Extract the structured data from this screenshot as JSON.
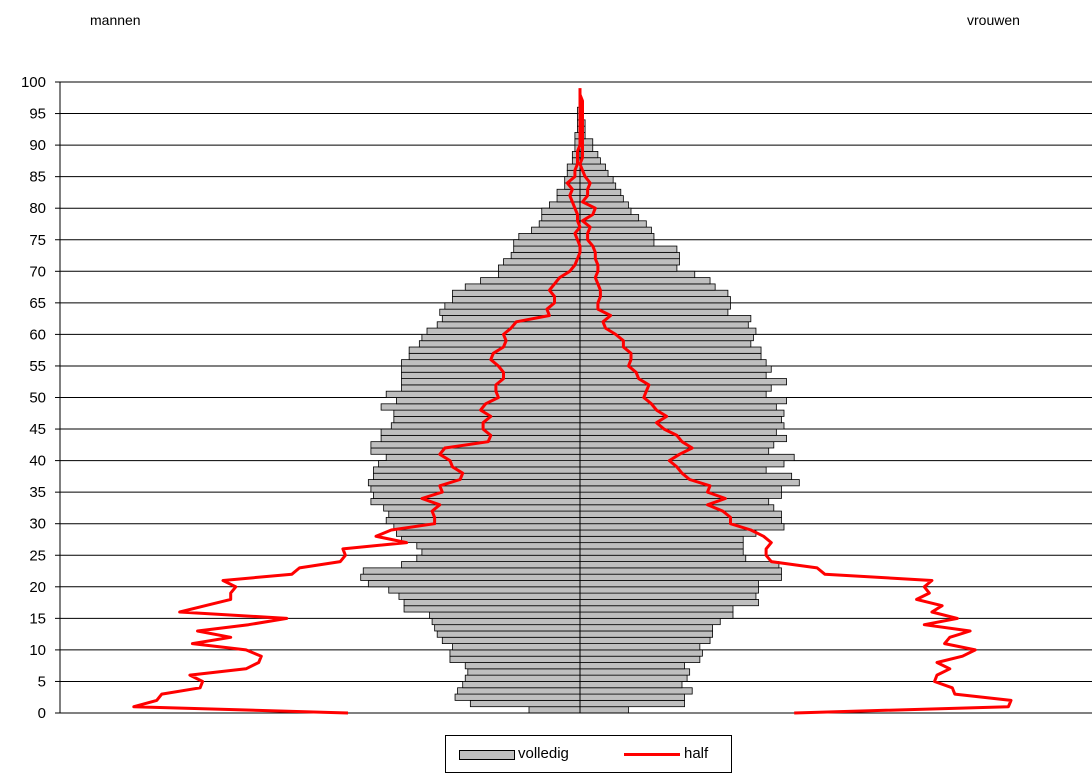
{
  "chart_data": {
    "type": "bar",
    "subtype": "population-pyramid",
    "left_label": "mannen",
    "right_label": "vrouwen",
    "ylim": [
      0,
      100
    ],
    "yticks": [
      0,
      5,
      10,
      15,
      20,
      25,
      30,
      35,
      40,
      45,
      50,
      55,
      60,
      65,
      70,
      75,
      80,
      85,
      90,
      95,
      100
    ],
    "xlim": [
      -100,
      100
    ],
    "grid": true,
    "legend_position": "bottom",
    "colors": {
      "volledig": "#bfbfbf",
      "half": "#ff0000",
      "outline": "#000000"
    },
    "series": [
      {
        "name": "volledig",
        "kind": "bar",
        "ages": [
          0,
          1,
          2,
          3,
          4,
          5,
          6,
          7,
          8,
          9,
          10,
          11,
          12,
          13,
          14,
          15,
          16,
          17,
          18,
          19,
          20,
          21,
          22,
          23,
          24,
          25,
          26,
          27,
          28,
          29,
          30,
          31,
          32,
          33,
          34,
          35,
          36,
          37,
          38,
          39,
          40,
          41,
          42,
          43,
          44,
          45,
          46,
          47,
          48,
          49,
          50,
          51,
          52,
          53,
          54,
          55,
          56,
          57,
          58,
          59,
          60,
          61,
          62,
          63,
          64,
          65,
          66,
          67,
          68,
          69,
          70,
          71,
          72,
          73,
          74,
          75,
          76,
          77,
          78,
          79,
          80,
          81,
          82,
          83,
          84,
          85,
          86,
          87,
          88,
          89,
          90,
          91,
          92,
          93,
          94,
          95
        ],
        "men": [
          20,
          43,
          49,
          48,
          46,
          45,
          44,
          45,
          51,
          51,
          50,
          54,
          56,
          57,
          58,
          59,
          69,
          69,
          71,
          75,
          83,
          86,
          85,
          70,
          64,
          62,
          64,
          70,
          72,
          73,
          76,
          75,
          77,
          82,
          81,
          82,
          83,
          81,
          81,
          79,
          76,
          82,
          82,
          78,
          78,
          74,
          73,
          73,
          78,
          72,
          76,
          70,
          70,
          70,
          70,
          70,
          67,
          67,
          63,
          62,
          60,
          56,
          54,
          55,
          53,
          50,
          50,
          45,
          39,
          32,
          32,
          30,
          27,
          26,
          26,
          24,
          19,
          16,
          15,
          15,
          12,
          9,
          9,
          6,
          6,
          5,
          5,
          3,
          3,
          2,
          2,
          2,
          1,
          1,
          1,
          1
        ],
        "women": [
          19,
          41,
          41,
          44,
          40,
          42,
          43,
          41,
          47,
          48,
          47,
          51,
          52,
          52,
          55,
          60,
          60,
          70,
          69,
          70,
          70,
          79,
          79,
          78,
          65,
          64,
          64,
          64,
          69,
          80,
          79,
          79,
          76,
          74,
          79,
          79,
          86,
          83,
          73,
          80,
          84,
          74,
          76,
          81,
          77,
          80,
          79,
          80,
          77,
          81,
          73,
          75,
          81,
          73,
          75,
          73,
          71,
          71,
          67,
          68,
          69,
          66,
          67,
          58,
          59,
          59,
          58,
          53,
          51,
          45,
          38,
          39,
          39,
          38,
          29,
          29,
          28,
          26,
          23,
          20,
          19,
          17,
          16,
          14,
          13,
          11,
          10,
          8,
          7,
          5,
          5,
          2,
          2,
          2,
          1,
          1
        ]
      },
      {
        "name": "half",
        "kind": "line",
        "ages": [
          0,
          1,
          2,
          3,
          4,
          5,
          6,
          7,
          8,
          9,
          10,
          11,
          12,
          13,
          14,
          15,
          16,
          17,
          18,
          19,
          20,
          21,
          22,
          23,
          24,
          25,
          26,
          27,
          28,
          29,
          30,
          31,
          32,
          33,
          34,
          35,
          36,
          37,
          38,
          39,
          40,
          41,
          42,
          43,
          44,
          45,
          46,
          47,
          48,
          49,
          50,
          51,
          52,
          53,
          54,
          55,
          56,
          57,
          58,
          59,
          60,
          61,
          62,
          63,
          64,
          65,
          66,
          67,
          68,
          69,
          70,
          71,
          72,
          73,
          74,
          75,
          76,
          77,
          78,
          79,
          80,
          81,
          82,
          83,
          84,
          85,
          86,
          87,
          88,
          89,
          90,
          91,
          92,
          93,
          94,
          95,
          96,
          97,
          98,
          99
        ],
        "men": [
          91,
          175,
          166,
          164,
          149,
          148,
          153,
          131,
          126,
          125,
          131,
          152,
          137,
          150,
          130,
          115,
          157,
          147,
          137,
          137,
          135,
          140,
          113,
          110,
          94,
          92,
          93,
          68,
          80,
          74,
          57,
          57,
          58,
          55,
          62,
          54,
          55,
          47,
          46,
          50,
          51,
          55,
          53,
          36,
          35,
          38,
          38,
          35,
          39,
          37,
          32,
          33,
          33,
          30,
          30,
          32,
          35,
          34,
          30,
          29,
          30,
          27,
          25,
          12,
          13,
          10,
          10,
          12,
          10,
          8,
          4,
          2,
          1,
          0,
          0,
          1,
          2,
          0,
          1,
          1,
          2,
          3,
          4,
          3,
          5,
          2,
          2,
          1,
          1,
          1,
          0,
          0,
          0,
          0,
          0,
          0,
          0,
          0,
          0,
          0
        ],
        "women": [
          84,
          168,
          169,
          147,
          146,
          139,
          140,
          145,
          140,
          150,
          155,
          143,
          145,
          153,
          135,
          148,
          138,
          142,
          132,
          137,
          135,
          138,
          96,
          93,
          75,
          73,
          73,
          75,
          72,
          67,
          59,
          59,
          56,
          50,
          57,
          50,
          51,
          43,
          40,
          38,
          35,
          39,
          44,
          40,
          38,
          33,
          30,
          34,
          30,
          28,
          25,
          26,
          27,
          23,
          22,
          19,
          20,
          20,
          17,
          17,
          14,
          10,
          9,
          12,
          7,
          7,
          8,
          8,
          7,
          6,
          7,
          7,
          6,
          6,
          5,
          3,
          3,
          4,
          1,
          5,
          6,
          1,
          3,
          3,
          4,
          2,
          1,
          0,
          1,
          1,
          1,
          1,
          1,
          1,
          1,
          1,
          1,
          1,
          0,
          0
        ]
      }
    ]
  },
  "legend": {
    "item1": "volledig",
    "item2": "half"
  }
}
